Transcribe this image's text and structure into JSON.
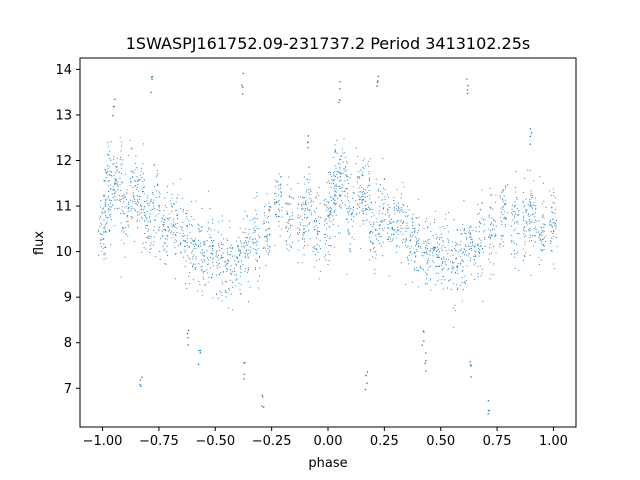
{
  "chart_data": {
    "type": "scatter",
    "title": "1SWASPJ161752.09-231737.2 Period 3413102.25s",
    "xlabel": "phase",
    "ylabel": "flux",
    "xlim": [
      -1.1,
      1.1
    ],
    "ylim": [
      6.15,
      14.25
    ],
    "xticks": [
      -1.0,
      -0.75,
      -0.5,
      -0.25,
      0.0,
      0.25,
      0.5,
      0.75,
      1.0
    ],
    "xtick_labels": [
      "−1.00",
      "−0.75",
      "−0.50",
      "−0.25",
      "0.00",
      "0.25",
      "0.50",
      "0.75",
      "1.00"
    ],
    "yticks": [
      7,
      8,
      9,
      10,
      11,
      12,
      13,
      14
    ],
    "ytick_labels": [
      "7",
      "8",
      "9",
      "10",
      "11",
      "12",
      "13",
      "14"
    ],
    "grid": false,
    "legend": "none",
    "marker_color": "#1f77b4",
    "series": [
      {
        "clusters": [
          {
            "x": -1.0,
            "y": 10.6
          },
          {
            "x": -0.98,
            "y": 11.1
          },
          {
            "x": -0.96,
            "y": 11.5
          },
          {
            "x": -0.93,
            "y": 11.6
          },
          {
            "x": -0.9,
            "y": 10.9
          },
          {
            "x": -0.86,
            "y": 11.3
          },
          {
            "x": -0.83,
            "y": 11.2
          },
          {
            "x": -0.8,
            "y": 10.5
          },
          {
            "x": -0.76,
            "y": 10.9
          },
          {
            "x": -0.72,
            "y": 10.5
          },
          {
            "x": -0.68,
            "y": 10.6
          },
          {
            "x": -0.64,
            "y": 10.3
          },
          {
            "x": -0.6,
            "y": 10.1
          },
          {
            "x": -0.56,
            "y": 9.9
          },
          {
            "x": -0.52,
            "y": 10.0
          },
          {
            "x": -0.48,
            "y": 9.8
          },
          {
            "x": -0.44,
            "y": 9.6
          },
          {
            "x": -0.4,
            "y": 9.8
          },
          {
            "x": -0.36,
            "y": 10.1
          },
          {
            "x": -0.32,
            "y": 10.3
          },
          {
            "x": -0.27,
            "y": 10.5
          },
          {
            "x": -0.22,
            "y": 10.9
          },
          {
            "x": -0.17,
            "y": 10.7
          },
          {
            "x": -0.12,
            "y": 10.6
          },
          {
            "x": -0.09,
            "y": 10.9
          },
          {
            "x": -0.05,
            "y": 10.5
          },
          {
            "x": 0.0,
            "y": 10.6
          },
          {
            "x": 0.02,
            "y": 11.1
          },
          {
            "x": 0.04,
            "y": 11.5
          },
          {
            "x": 0.07,
            "y": 11.6
          },
          {
            "x": 0.1,
            "y": 10.9
          },
          {
            "x": 0.14,
            "y": 11.3
          },
          {
            "x": 0.17,
            "y": 11.2
          },
          {
            "x": 0.2,
            "y": 10.5
          },
          {
            "x": 0.24,
            "y": 10.9
          },
          {
            "x": 0.28,
            "y": 10.5
          },
          {
            "x": 0.32,
            "y": 10.6
          },
          {
            "x": 0.36,
            "y": 10.3
          },
          {
            "x": 0.4,
            "y": 10.1
          },
          {
            "x": 0.44,
            "y": 9.9
          },
          {
            "x": 0.48,
            "y": 10.0
          },
          {
            "x": 0.52,
            "y": 9.8
          },
          {
            "x": 0.56,
            "y": 9.6
          },
          {
            "x": 0.6,
            "y": 9.8
          },
          {
            "x": 0.64,
            "y": 10.1
          },
          {
            "x": 0.68,
            "y": 10.3
          },
          {
            "x": 0.73,
            "y": 10.5
          },
          {
            "x": 0.78,
            "y": 10.9
          },
          {
            "x": 0.83,
            "y": 10.7
          },
          {
            "x": 0.88,
            "y": 10.6
          },
          {
            "x": 0.91,
            "y": 10.9
          },
          {
            "x": 0.95,
            "y": 10.5
          },
          {
            "x": 1.0,
            "y": 10.6
          }
        ],
        "outliers": [
          {
            "x": -0.95,
            "y": 13.2
          },
          {
            "x": -0.78,
            "y": 13.6
          },
          {
            "x": -0.57,
            "y": 7.6
          },
          {
            "x": -0.62,
            "y": 8.1
          },
          {
            "x": -0.38,
            "y": 13.7
          },
          {
            "x": -0.37,
            "y": 7.4
          },
          {
            "x": -0.29,
            "y": 6.7
          },
          {
            "x": -0.09,
            "y": 12.5
          },
          {
            "x": 0.05,
            "y": 13.5
          },
          {
            "x": 0.22,
            "y": 13.6
          },
          {
            "x": 0.43,
            "y": 7.6
          },
          {
            "x": 0.42,
            "y": 8.1
          },
          {
            "x": 0.62,
            "y": 13.7
          },
          {
            "x": 0.63,
            "y": 7.4
          },
          {
            "x": 0.71,
            "y": 6.6
          },
          {
            "x": 0.9,
            "y": 12.5
          },
          {
            "x": -0.83,
            "y": 7.2
          },
          {
            "x": 0.17,
            "y": 7.2
          }
        ]
      }
    ]
  }
}
